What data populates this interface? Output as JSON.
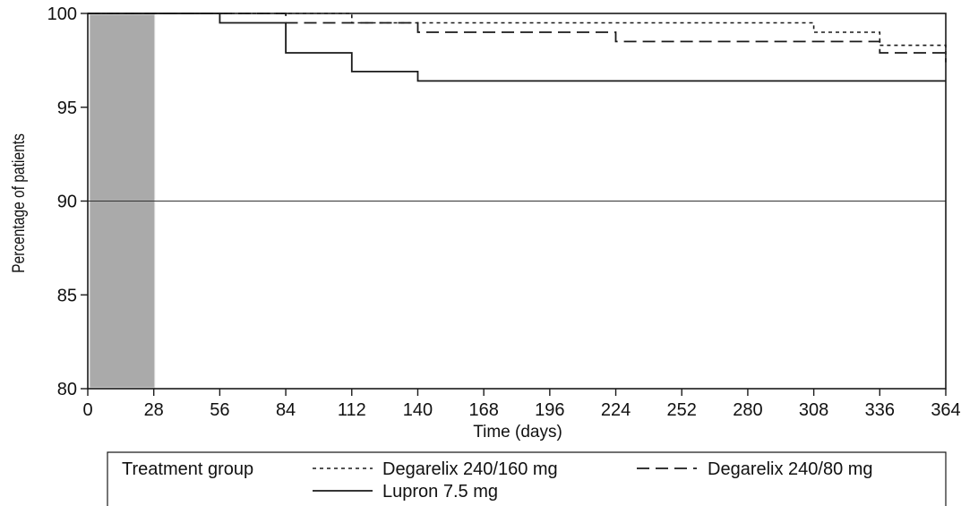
{
  "chart_data": {
    "type": "line",
    "step": true,
    "title": "",
    "xlabel": "Time (days)",
    "ylabel": "Percentage of patients",
    "xlim": [
      0,
      364
    ],
    "ylim": [
      80,
      100
    ],
    "x_ticks": [
      0,
      28,
      56,
      84,
      112,
      140,
      168,
      196,
      224,
      252,
      280,
      308,
      336,
      364
    ],
    "y_ticks": [
      80,
      85,
      90,
      95,
      100
    ],
    "reference_line_y": 90,
    "shaded_region_x": [
      0,
      28
    ],
    "shade_color": "#aaaaaa",
    "line_color": "#1a1a1a",
    "legend": {
      "title": "Treatment group",
      "placement": "bottom"
    },
    "series": [
      {
        "name": "Degarelix 240/160 mg",
        "style": "dotted",
        "points": [
          [
            0,
            100
          ],
          [
            112,
            100
          ],
          [
            112,
            99.5
          ],
          [
            308,
            99.5
          ],
          [
            308,
            99.0
          ],
          [
            336,
            99.0
          ],
          [
            336,
            98.3
          ],
          [
            364,
            98.3
          ],
          [
            364,
            97.8
          ]
        ]
      },
      {
        "name": "Degarelix 240/80 mg",
        "style": "dashed",
        "points": [
          [
            0,
            100
          ],
          [
            84,
            100
          ],
          [
            84,
            99.5
          ],
          [
            140,
            99.5
          ],
          [
            140,
            99.0
          ],
          [
            224,
            99.0
          ],
          [
            224,
            98.5
          ],
          [
            336,
            98.5
          ],
          [
            336,
            97.9
          ],
          [
            364,
            97.9
          ],
          [
            364,
            97.4
          ]
        ]
      },
      {
        "name": "Lupron 7.5 mg",
        "style": "solid",
        "points": [
          [
            0,
            100
          ],
          [
            56,
            100
          ],
          [
            56,
            99.5
          ],
          [
            84,
            99.5
          ],
          [
            84,
            97.9
          ],
          [
            112,
            97.9
          ],
          [
            112,
            96.9
          ],
          [
            140,
            96.9
          ],
          [
            140,
            96.4
          ],
          [
            364,
            96.4
          ]
        ]
      }
    ]
  }
}
